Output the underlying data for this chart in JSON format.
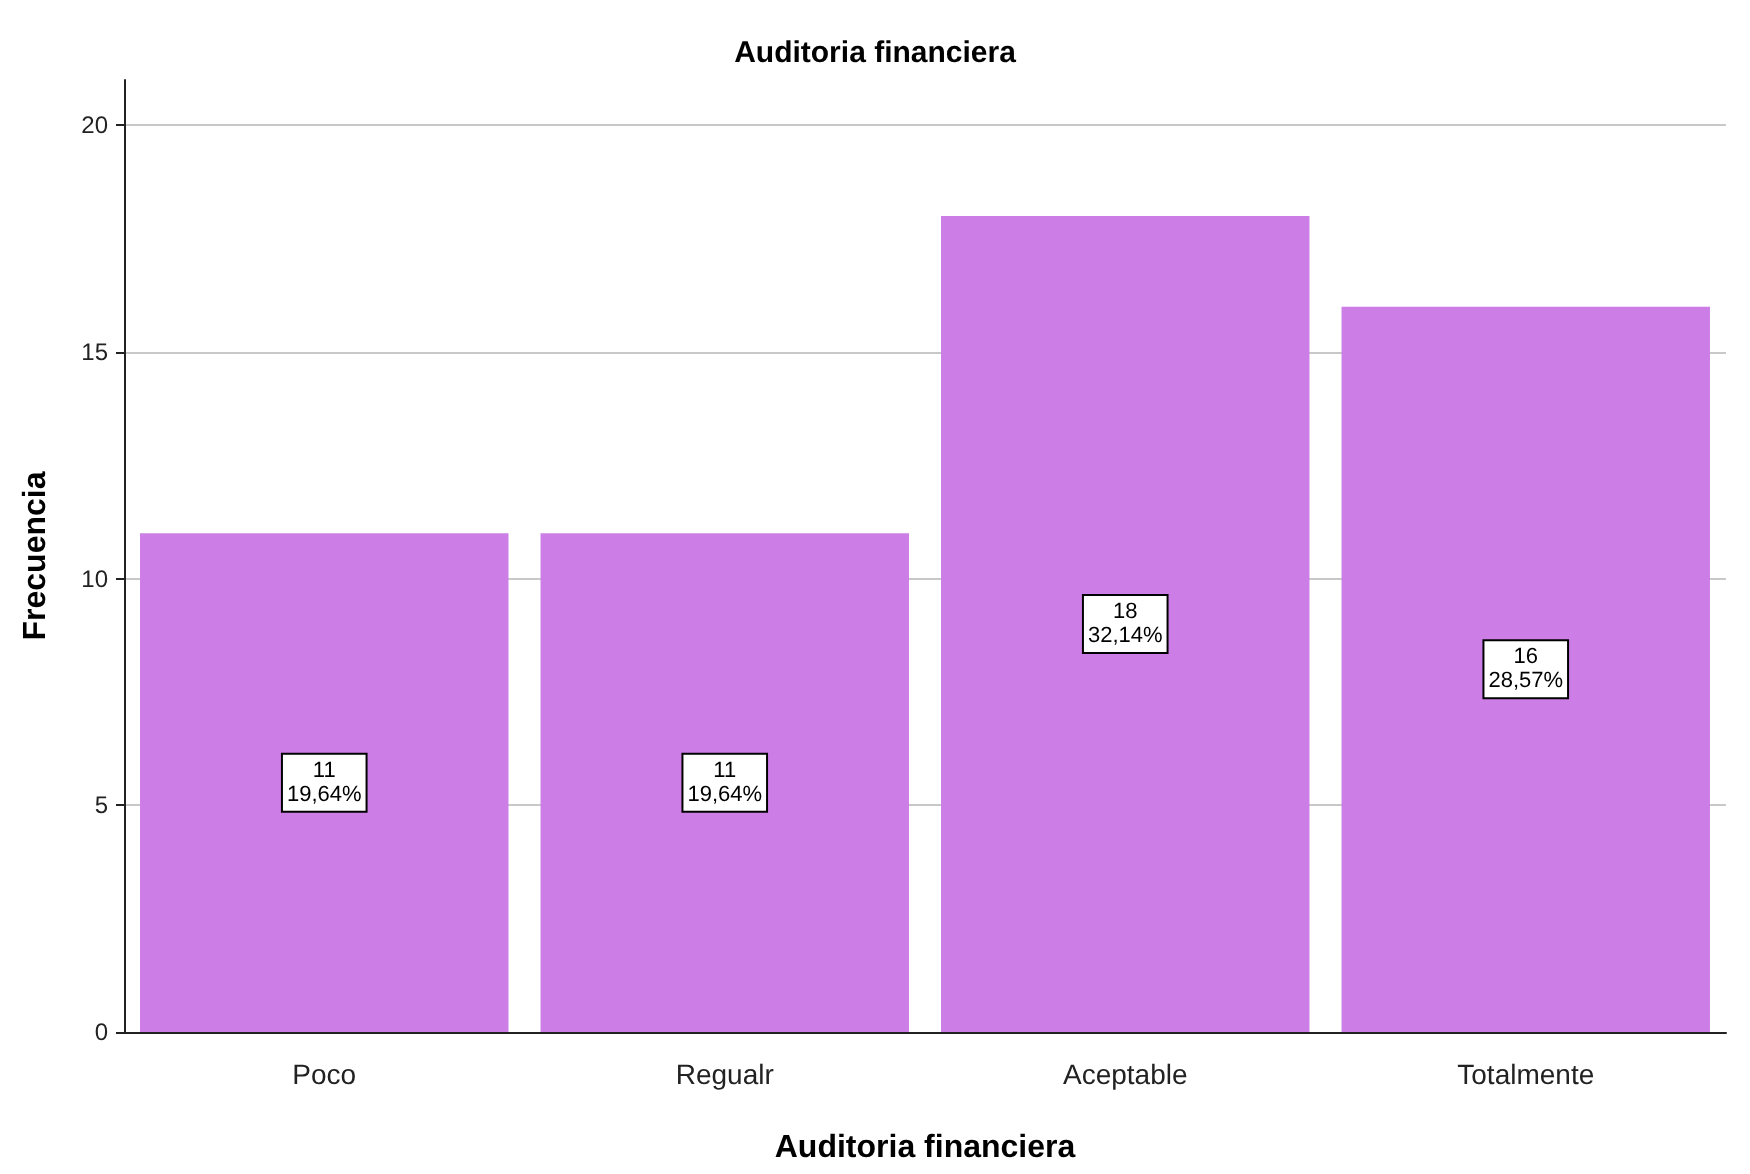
{
  "chart_data": {
    "type": "bar",
    "title": "Auditoria financiera",
    "xlabel": "Auditoria financiera",
    "ylabel": "Frecuencia",
    "categories": [
      "Poco",
      "Regualr",
      "Aceptable",
      "Totalmente"
    ],
    "values": [
      11,
      11,
      18,
      16
    ],
    "value_labels": [
      "11\n19,64%",
      "11\n19,64%",
      "18\n32,14%",
      "16\n28,57%"
    ],
    "color": "#cc7ee6",
    "ylim": [
      0,
      21
    ],
    "yticks": [
      0,
      5,
      10,
      15,
      20
    ],
    "grid": "y"
  }
}
